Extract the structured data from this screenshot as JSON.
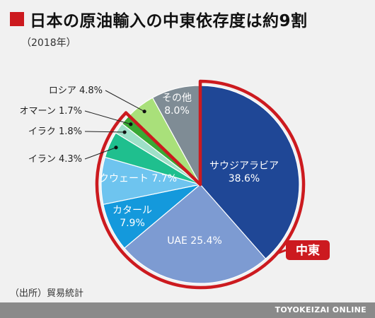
{
  "title": "日本の原油輸入の中東依存度は約9割",
  "subtitle": "（2018年）",
  "source": "（出所）貿易統計",
  "credit": "TOYOKEIZAI ONLINE",
  "chart_data": {
    "type": "pie",
    "title": "日本の原油輸入の中東依存度は約9割",
    "slices": [
      {
        "name": "サウジアラビア",
        "value": 38.6,
        "label": "38.6%",
        "color": "#1f4796",
        "text_color": "#ffffff",
        "inside": true
      },
      {
        "name": "UAE",
        "value": 25.4,
        "label": "25.4%",
        "color": "#7d9bd2",
        "text_color": "#ffffff",
        "inside": true
      },
      {
        "name": "カタール",
        "value": 7.9,
        "label": "7.9%",
        "color": "#1499dc",
        "text_color": "#ffffff",
        "inside": true
      },
      {
        "name": "クウェート",
        "value": 7.7,
        "label": "7.7%",
        "color": "#6ec4ef",
        "text_color": "#ffffff",
        "inside": true
      },
      {
        "name": "イラン",
        "value": 4.3,
        "label": "4.3%",
        "color": "#1fbf8e",
        "text_color": "#222222",
        "inside": false
      },
      {
        "name": "イラク",
        "value": 1.8,
        "label": "1.8%",
        "color": "#9ee0c8",
        "text_color": "#222222",
        "inside": false
      },
      {
        "name": "オマーン",
        "value": 1.7,
        "label": "1.7%",
        "color": "#39a935",
        "text_color": "#222222",
        "inside": false
      },
      {
        "name": "ロシア",
        "value": 4.8,
        "label": "4.8%",
        "color": "#a9e07a",
        "text_color": "#222222",
        "inside": false
      },
      {
        "name": "その他",
        "value": 8.0,
        "label": "8.0%",
        "color": "#7f8c95",
        "text_color": "#ffffff",
        "inside": true
      }
    ],
    "highlight": {
      "label": "中東",
      "color": "#cc1a1f",
      "includes": [
        "サウジアラビア",
        "UAE",
        "カタール",
        "クウェート",
        "イラン",
        "イラク",
        "オマーン"
      ]
    }
  }
}
